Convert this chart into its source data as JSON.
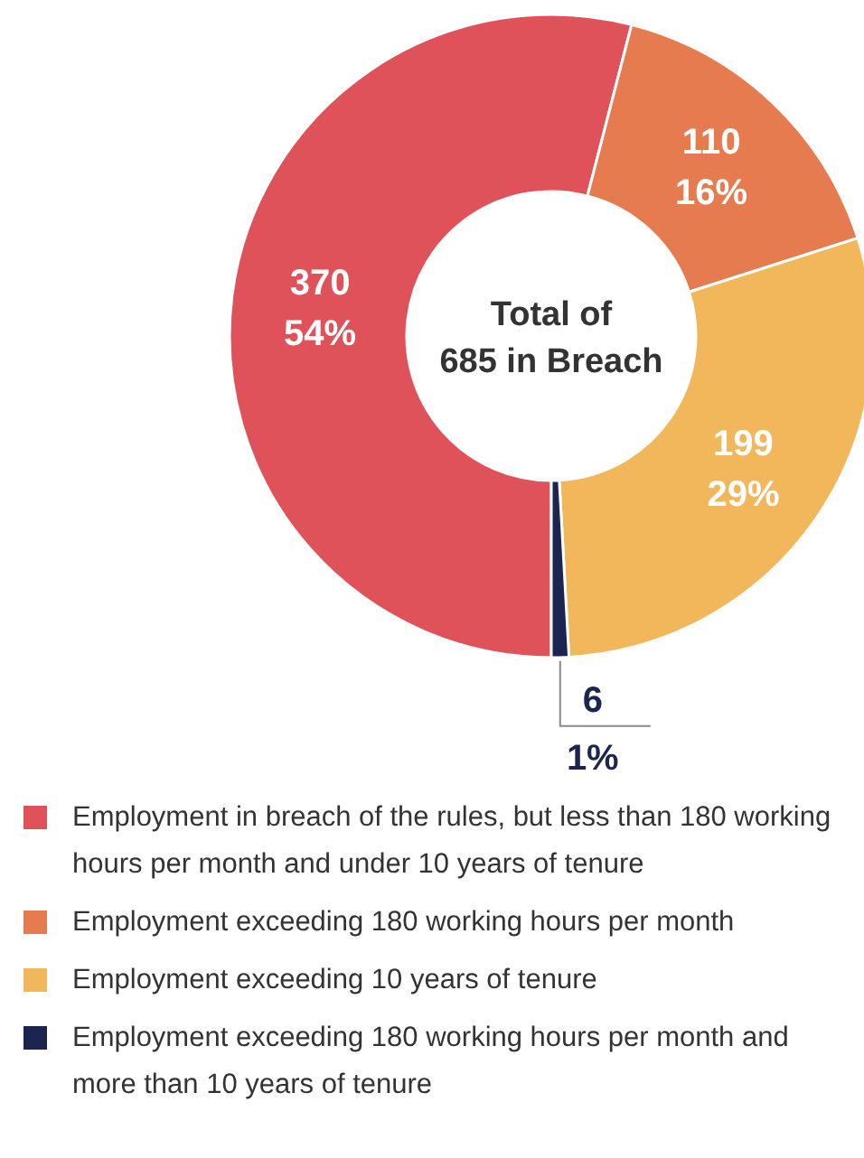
{
  "chart_data": {
    "type": "donut",
    "categories": [
      "Employment in breach of the rules, but less than 180 working hours per month and under 10 years of tenure",
      "Employment exceeding 180 working hours per month",
      "Employment exceeding 10 years of tenure",
      "Employment exceeding 180 working hours per month and more than 10 years of tenure"
    ],
    "values": [
      370,
      110,
      199,
      6
    ],
    "colors": [
      "#e0525a",
      "#e57b4e",
      "#f2b75a",
      "#1c2550"
    ],
    "value_labels": [
      "370 54%",
      "110 16%",
      "199 29%",
      "6 1%"
    ],
    "annotations": [
      "Total of 685 in Breach"
    ],
    "legend": "bottom"
  }
}
